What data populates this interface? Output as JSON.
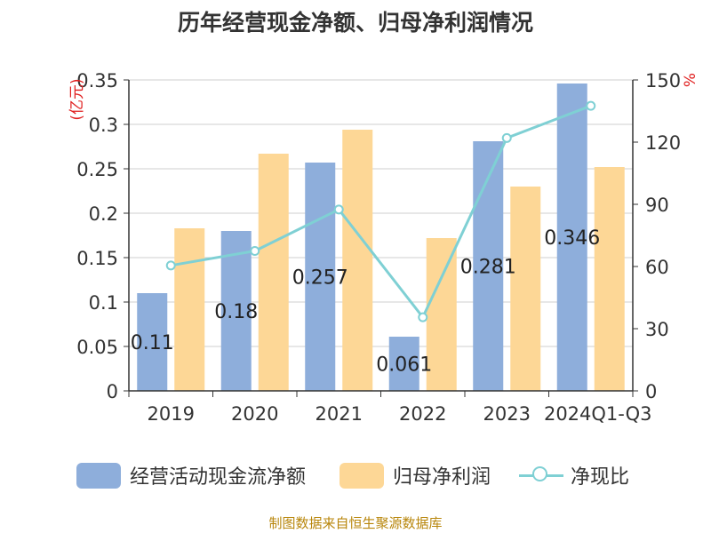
{
  "chart_data": {
    "type": "bar",
    "title": "历年经营现金净额、归母净利润情况",
    "categories": [
      "2019",
      "2020",
      "2021",
      "2022",
      "2023",
      "2024Q1-Q3"
    ],
    "y_left_label": "(亿元)",
    "y_right_label": "%",
    "y_left_range": [
      0,
      0.35
    ],
    "y_left_ticks": [
      "0",
      "0.05",
      "0.1",
      "0.15",
      "0.2",
      "0.25",
      "0.3",
      "0.35"
    ],
    "y_right_range": [
      0,
      150
    ],
    "y_right_ticks": [
      "0",
      "30",
      "60",
      "90",
      "120",
      "150"
    ],
    "grid": true,
    "legend_position": "bottom",
    "series": [
      {
        "name": "经营活动现金流净额",
        "type": "bar",
        "axis": "left",
        "color": "#8eaedb",
        "values": [
          0.11,
          0.18,
          0.257,
          0.061,
          0.281,
          0.346
        ],
        "labels": [
          "0.11",
          "0.18",
          "0.257",
          "0.061",
          "0.281",
          "0.346"
        ]
      },
      {
        "name": "归母净利润",
        "type": "bar",
        "axis": "left",
        "color": "#fdd796",
        "values": [
          0.183,
          0.267,
          0.294,
          0.172,
          0.23,
          0.252
        ]
      },
      {
        "name": "净现比",
        "type": "line",
        "axis": "right",
        "color": "#7fd0d4",
        "values": [
          60.5,
          67.5,
          87.5,
          35.5,
          122,
          137.5
        ]
      }
    ]
  },
  "source_note": "制图数据来自恒生聚源数据库"
}
